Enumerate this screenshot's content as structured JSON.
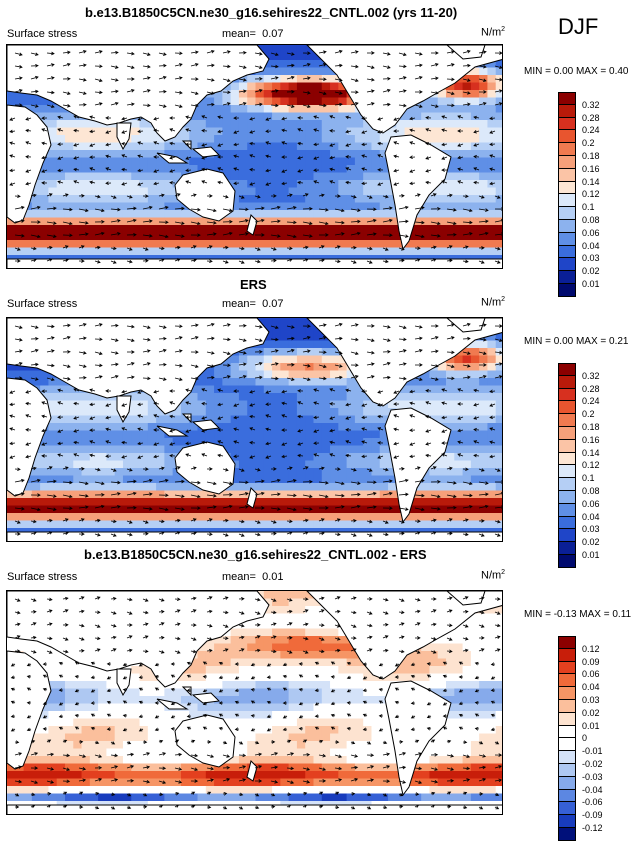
{
  "season": "DJF",
  "panels": [
    {
      "title": "b.e13.B1850C5CN.ne30_g16.sehires22_CNTL.002 (yrs 11-20)",
      "variable": "Surface stress",
      "mean_label": "mean=",
      "mean_value": "0.07",
      "units": "N/m",
      "units_sup": "2",
      "minmax": "MIN =  0.00 MAX =  0.40",
      "palette": "stress",
      "levels": [
        "0.32",
        "0.28",
        "0.24",
        "0.2",
        "0.18",
        "0.16",
        "0.14",
        "0.12",
        "0.1",
        "0.08",
        "0.06",
        "0.04",
        "0.03",
        "0.02",
        "0.01"
      ]
    },
    {
      "title": "ERS",
      "variable": "Surface stress",
      "mean_label": "mean=",
      "mean_value": "0.07",
      "units": "N/m",
      "units_sup": "2",
      "minmax": "MIN =  0.00 MAX =  0.21",
      "palette": "stress",
      "levels": [
        "0.32",
        "0.28",
        "0.24",
        "0.2",
        "0.18",
        "0.16",
        "0.14",
        "0.12",
        "0.1",
        "0.08",
        "0.06",
        "0.04",
        "0.03",
        "0.02",
        "0.01"
      ]
    },
    {
      "title": "b.e13.B1850C5CN.ne30_g16.sehires22_CNTL.002 - ERS",
      "variable": "Surface stress",
      "mean_label": "mean=",
      "mean_value": "0.01",
      "units": "N/m",
      "units_sup": "2",
      "minmax": "MIN = -0.13 MAX =  0.11",
      "palette": "diff",
      "levels": [
        "0.12",
        "0.09",
        "0.06",
        "0.04",
        "0.03",
        "0.02",
        "0.01",
        "0",
        "-0.01",
        "-0.02",
        "-0.03",
        "-0.04",
        "-0.06",
        "-0.09",
        "-0.12"
      ]
    }
  ],
  "colors": {
    "stress": [
      "#8b0000",
      "#b81a0a",
      "#d7301f",
      "#e8552f",
      "#f07a50",
      "#f6a07a",
      "#fbc4a6",
      "#fde6d4",
      "#dce9fa",
      "#b5cff5",
      "#8cb2ee",
      "#5f8fe6",
      "#3a6ddd",
      "#1f45c8",
      "#0a1f96",
      "#000a6e"
    ],
    "diff": [
      "#8b0000",
      "#c81e0a",
      "#e3401f",
      "#f06a3a",
      "#f69565",
      "#fbbf9c",
      "#fde3d0",
      "#ffffff",
      "#ffffff",
      "#d4e2f8",
      "#aec8f2",
      "#86aaeb",
      "#5c87e2",
      "#3660d6",
      "#183cbd",
      "#00107a"
    ]
  }
}
